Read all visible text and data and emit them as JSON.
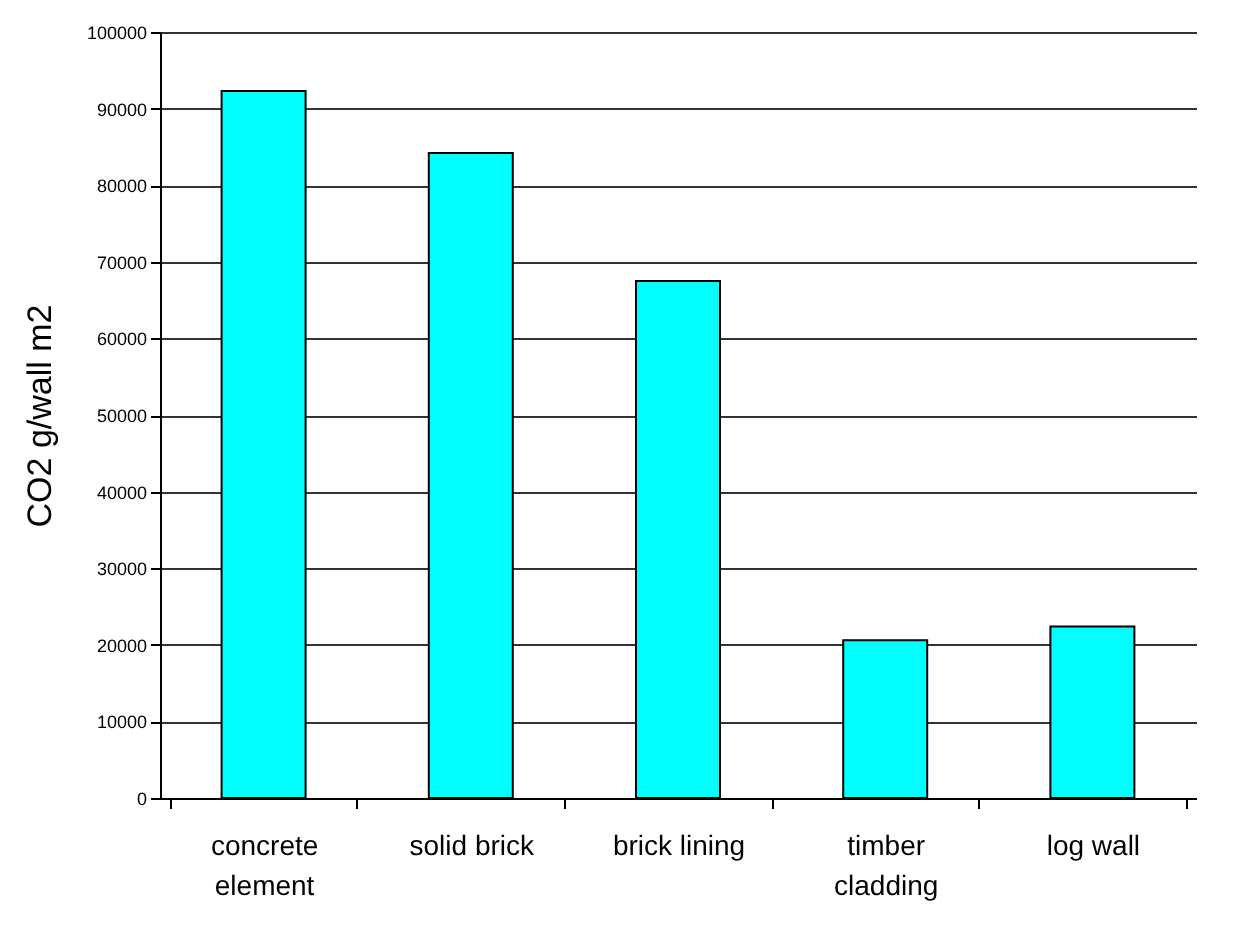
{
  "chart_data": {
    "type": "bar",
    "ylabel": "CO2 g/wall m2",
    "categories": [
      "concrete\nelement",
      "solid brick",
      "brick lining",
      "timber\ncladding",
      "log wall"
    ],
    "values": [
      92300,
      84200,
      67500,
      20600,
      22400
    ],
    "color": "#00ffff",
    "ylim": [
      0,
      100000
    ],
    "yticks": [
      0,
      10000,
      20000,
      30000,
      40000,
      50000,
      60000,
      70000,
      80000,
      90000,
      100000
    ],
    "grid": "y"
  }
}
